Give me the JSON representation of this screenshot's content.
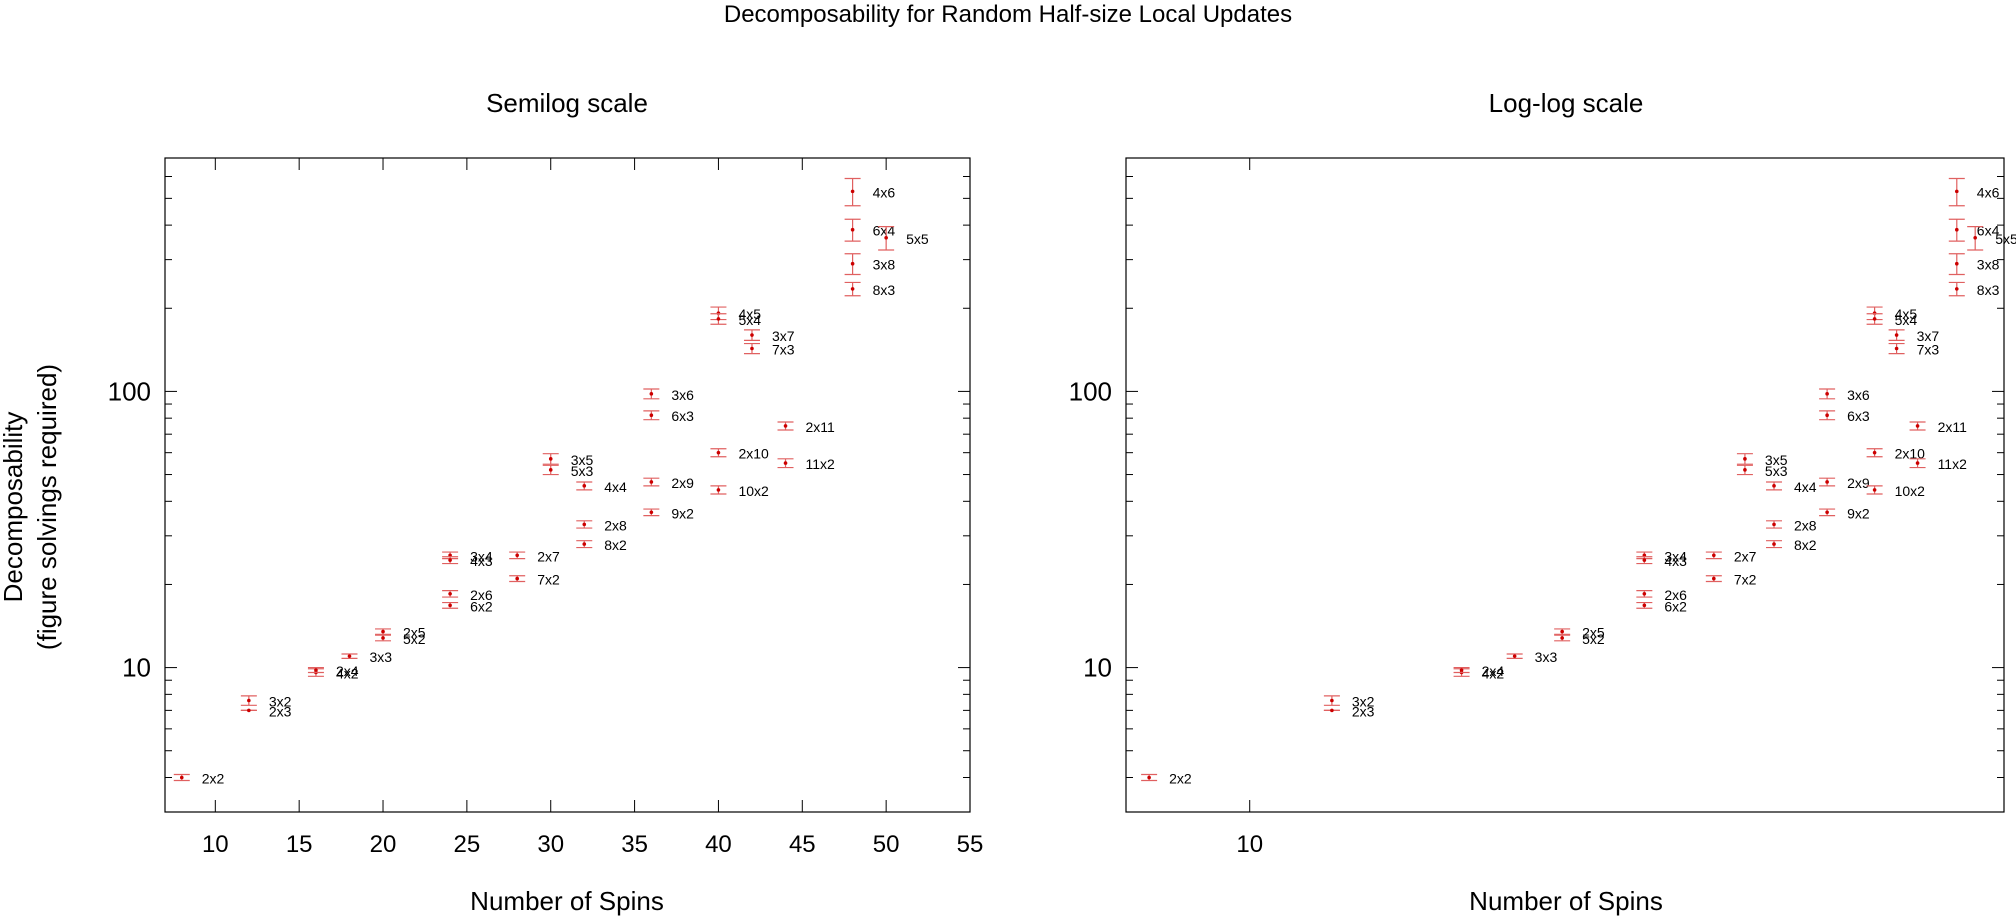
{
  "suptitle": "Decomposability for Random Half-size Local Updates",
  "colors": {
    "marker": "#cc0000",
    "errorbar": "#e06060",
    "frame": "#000000",
    "text": "#000000"
  },
  "chart_data": [
    {
      "type": "scatter",
      "title": "Semilog scale",
      "xlabel": "Number of Spins",
      "ylabel": "Decomposability",
      "ylabel2": "(figure solvings required)",
      "xscale": "linear",
      "yscale": "log",
      "xlim": [
        7,
        55
      ],
      "ylim": [
        3,
        700
      ],
      "xticks": [
        10,
        15,
        20,
        25,
        30,
        35,
        40,
        45,
        50,
        55
      ],
      "yticks": [
        10,
        100
      ],
      "grid": false,
      "points": [
        {
          "label": "2x2",
          "x": 8,
          "y": 4.0,
          "lo": 3.9,
          "hi": 4.1
        },
        {
          "label": "3x2",
          "x": 12,
          "y": 7.6,
          "lo": 7.3,
          "hi": 7.9
        },
        {
          "label": "2x3",
          "x": 12,
          "y": 7.0,
          "lo": 7.0,
          "hi": 7.0
        },
        {
          "label": "4x2",
          "x": 16,
          "y": 9.6,
          "lo": 9.3,
          "hi": 9.9
        },
        {
          "label": "2x4",
          "x": 16,
          "y": 9.8,
          "lo": 9.6,
          "hi": 10.0
        },
        {
          "label": "3x3",
          "x": 18,
          "y": 11.0,
          "lo": 10.8,
          "hi": 11.2
        },
        {
          "label": "2x5",
          "x": 20,
          "y": 13.5,
          "lo": 13.2,
          "hi": 13.8
        },
        {
          "label": "5x2",
          "x": 20,
          "y": 12.8,
          "lo": 12.5,
          "hi": 13.1
        },
        {
          "label": "3x4",
          "x": 24,
          "y": 25.5,
          "lo": 24.8,
          "hi": 26.2
        },
        {
          "label": "4x3",
          "x": 24,
          "y": 24.5,
          "lo": 23.8,
          "hi": 25.2
        },
        {
          "label": "2x6",
          "x": 24,
          "y": 18.5,
          "lo": 18.0,
          "hi": 19.0
        },
        {
          "label": "6x2",
          "x": 24,
          "y": 16.8,
          "lo": 16.4,
          "hi": 17.2
        },
        {
          "label": "2x7",
          "x": 28,
          "y": 25.5,
          "lo": 24.8,
          "hi": 26.2
        },
        {
          "label": "7x2",
          "x": 28,
          "y": 21.0,
          "lo": 20.5,
          "hi": 21.5
        },
        {
          "label": "3x5",
          "x": 30,
          "y": 57.0,
          "lo": 54.5,
          "hi": 59.5
        },
        {
          "label": "5x3",
          "x": 30,
          "y": 52.0,
          "lo": 50.0,
          "hi": 54.0
        },
        {
          "label": "4x4",
          "x": 32,
          "y": 45.5,
          "lo": 44.0,
          "hi": 47.0
        },
        {
          "label": "2x8",
          "x": 32,
          "y": 33.0,
          "lo": 32.0,
          "hi": 34.0
        },
        {
          "label": "8x2",
          "x": 32,
          "y": 28.0,
          "lo": 27.2,
          "hi": 28.8
        },
        {
          "label": "3x6",
          "x": 36,
          "y": 98.0,
          "lo": 94.0,
          "hi": 102.0
        },
        {
          "label": "6x3",
          "x": 36,
          "y": 82.0,
          "lo": 79.0,
          "hi": 85.0
        },
        {
          "label": "2x9",
          "x": 36,
          "y": 47.0,
          "lo": 45.5,
          "hi": 48.5
        },
        {
          "label": "9x2",
          "x": 36,
          "y": 36.5,
          "lo": 35.5,
          "hi": 37.5
        },
        {
          "label": "4x5",
          "x": 40,
          "y": 192.0,
          "lo": 182.0,
          "hi": 202.0
        },
        {
          "label": "5x4",
          "x": 40,
          "y": 183.0,
          "lo": 175.0,
          "hi": 191.0
        },
        {
          "label": "2x10",
          "x": 40,
          "y": 60.0,
          "lo": 58.0,
          "hi": 62.0
        },
        {
          "label": "10x2",
          "x": 40,
          "y": 44.0,
          "lo": 42.5,
          "hi": 45.5
        },
        {
          "label": "3x7",
          "x": 42,
          "y": 160.0,
          "lo": 153.0,
          "hi": 167.0
        },
        {
          "label": "7x3",
          "x": 42,
          "y": 143.0,
          "lo": 137.0,
          "hi": 149.0
        },
        {
          "label": "2x11",
          "x": 44,
          "y": 75.0,
          "lo": 72.5,
          "hi": 77.5
        },
        {
          "label": "11x2",
          "x": 44,
          "y": 55.0,
          "lo": 53.0,
          "hi": 57.0
        },
        {
          "label": "4x6",
          "x": 48,
          "y": 530.0,
          "lo": 470.0,
          "hi": 590.0
        },
        {
          "label": "6x4",
          "x": 48,
          "y": 385.0,
          "lo": 350.0,
          "hi": 420.0
        },
        {
          "label": "3x8",
          "x": 48,
          "y": 290.0,
          "lo": 265.0,
          "hi": 315.0
        },
        {
          "label": "8x3",
          "x": 48,
          "y": 235.0,
          "lo": 222.0,
          "hi": 248.0
        },
        {
          "label": "5x5",
          "x": 50,
          "y": 360.0,
          "lo": 325.0,
          "hi": 395.0
        }
      ]
    },
    {
      "type": "scatter",
      "title": "Log-log scale",
      "xlabel": "Number of Spins",
      "ylabel": "",
      "ylabel2": "",
      "xscale": "log",
      "yscale": "log",
      "xlim": [
        7.6,
        53.3
      ],
      "ylim": [
        3,
        700
      ],
      "xticks": [
        10
      ],
      "yticks": [
        10,
        100
      ],
      "grid": false,
      "points": "same as Semilog scale"
    }
  ]
}
